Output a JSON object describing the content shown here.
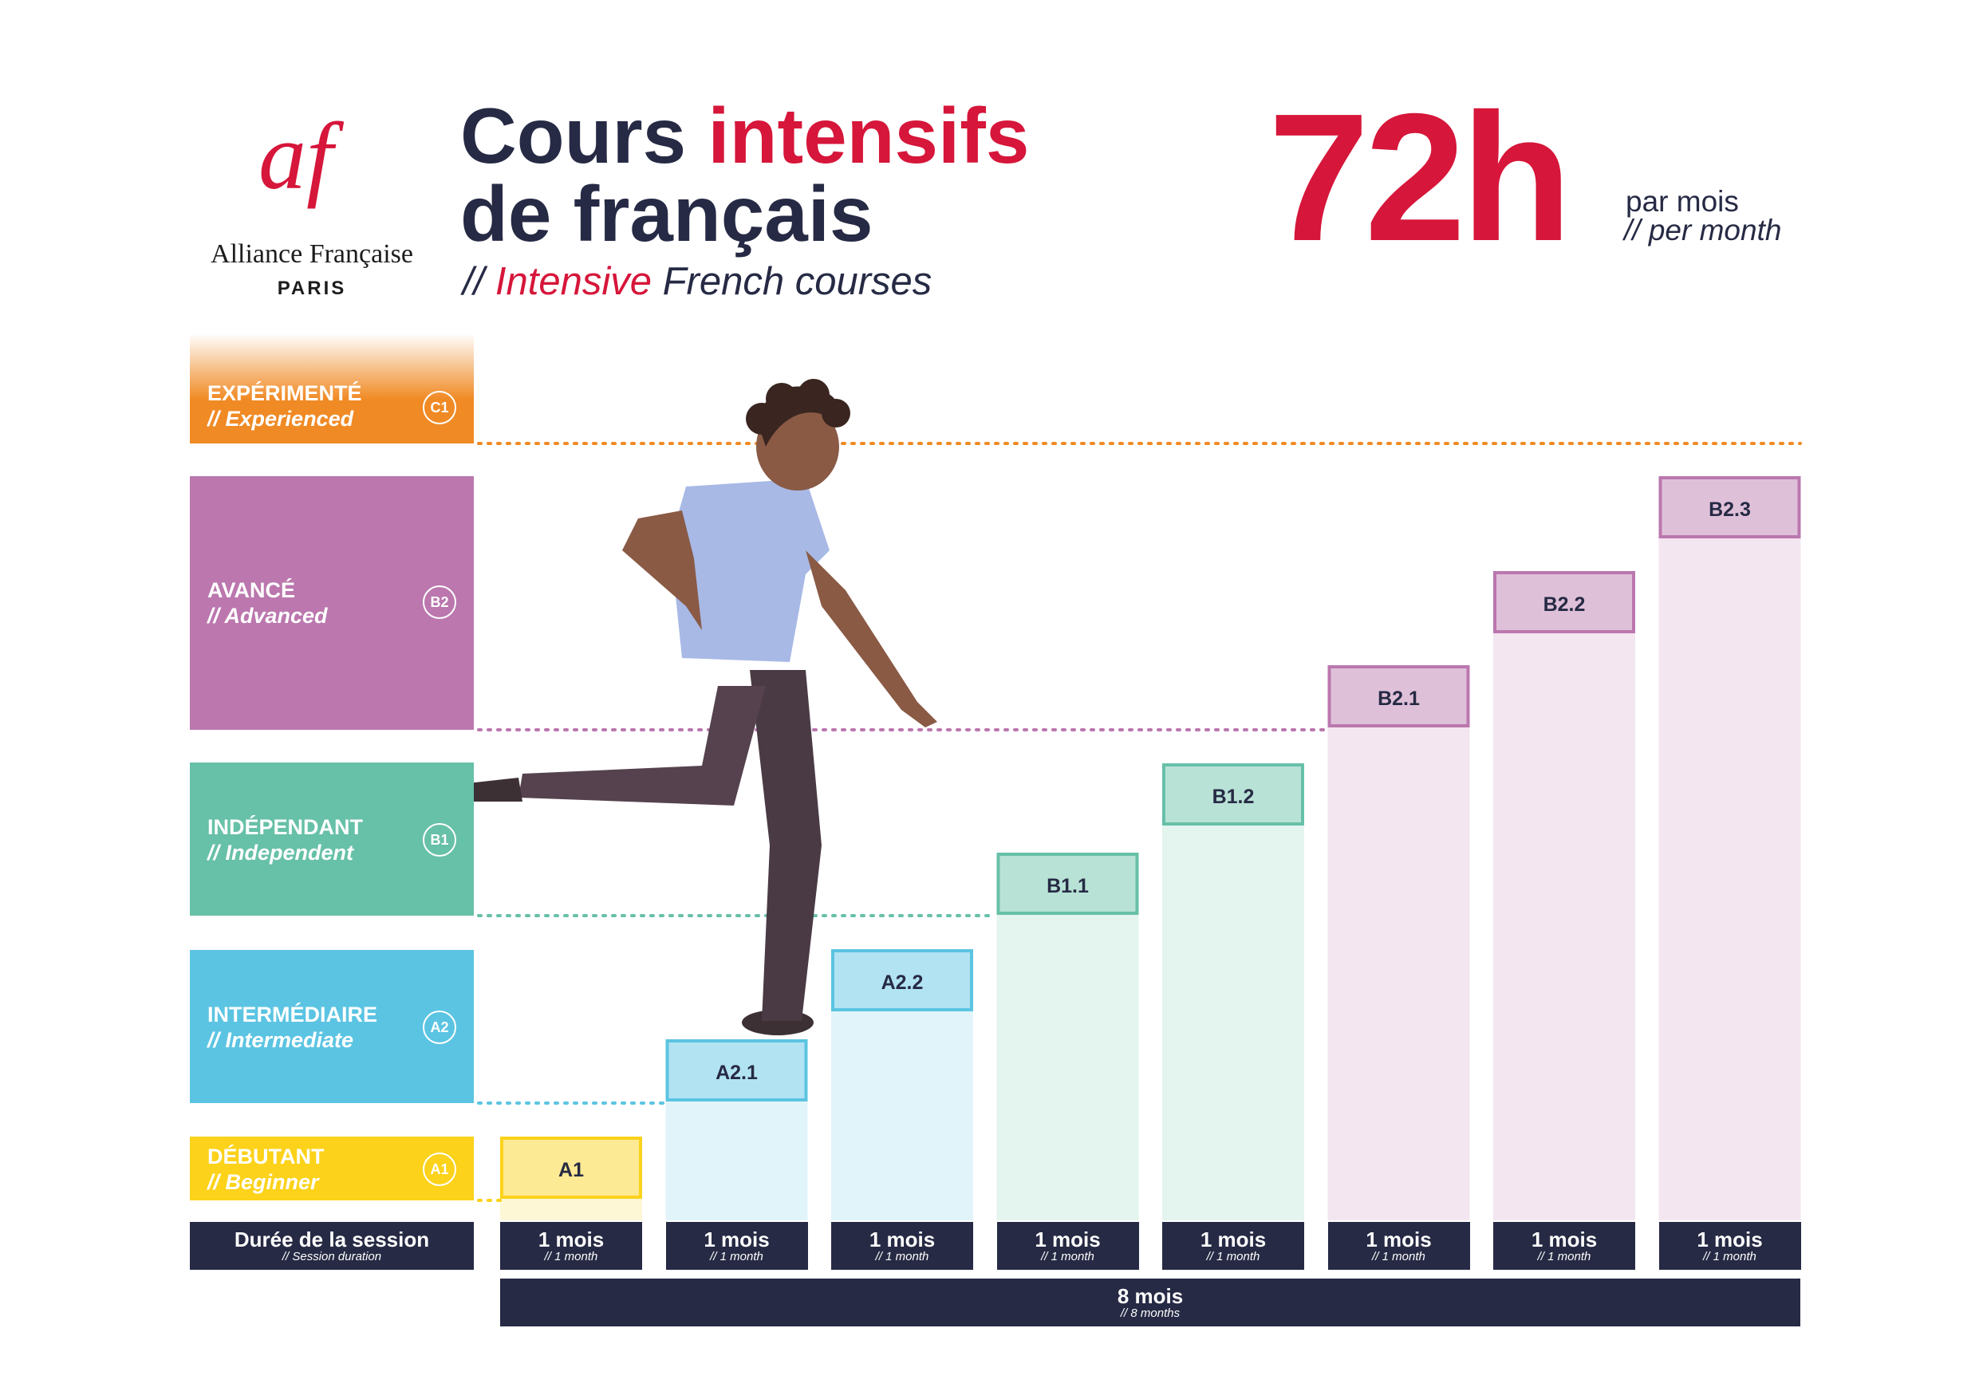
{
  "logo": {
    "mark": "af",
    "name": "Alliance Française",
    "city": "PARIS"
  },
  "title": {
    "line1_a": "Cours ",
    "line1_b": "intensifs",
    "line2": "de français",
    "subtitle_prefix": "// ",
    "subtitle_red": "Intensive",
    "subtitle_rest": " French courses"
  },
  "hours": {
    "value": "72h",
    "label": "par mois",
    "sub": "// per month"
  },
  "levels": [
    {
      "name": "EXPÉRIMENTÉ",
      "sub": "// Experienced",
      "badge": "C1",
      "color": "#f08a24"
    },
    {
      "name": "AVANCÉ",
      "sub": "// Advanced",
      "badge": "B2",
      "color": "#bb77ae"
    },
    {
      "name": "INDÉPENDANT",
      "sub": "// Independent",
      "badge": "B1",
      "color": "#67c0a8"
    },
    {
      "name": "INTERMÉDIAIRE",
      "sub": "// Intermediate",
      "badge": "A2",
      "color": "#5bc4e2"
    },
    {
      "name": "DÉBUTANT",
      "sub": "// Beginner",
      "badge": "A1",
      "color": "#fcd21a"
    }
  ],
  "duration": {
    "header": "Durée de la session",
    "header_sub": "// Session duration",
    "cell": "1 mois",
    "cell_sub": "// 1 month",
    "total": "8 mois",
    "total_sub": "// 8 months"
  },
  "chart_data": {
    "type": "bar",
    "categories": [
      "A1",
      "A2.1",
      "A2.2",
      "B1.1",
      "B1.2",
      "B2.1",
      "B2.2",
      "B2.3"
    ],
    "values": [
      1,
      2,
      3,
      4,
      5,
      6,
      7,
      8
    ],
    "category_colors": [
      "#fcd21a",
      "#5bc4e2",
      "#5bc4e2",
      "#67c0a8",
      "#67c0a8",
      "#bb77ae",
      "#bb77ae",
      "#bb77ae"
    ],
    "ylabel": "",
    "xlabel": "",
    "grid": false
  },
  "colors": {
    "navy": "#262a44",
    "red": "#d6163a"
  }
}
